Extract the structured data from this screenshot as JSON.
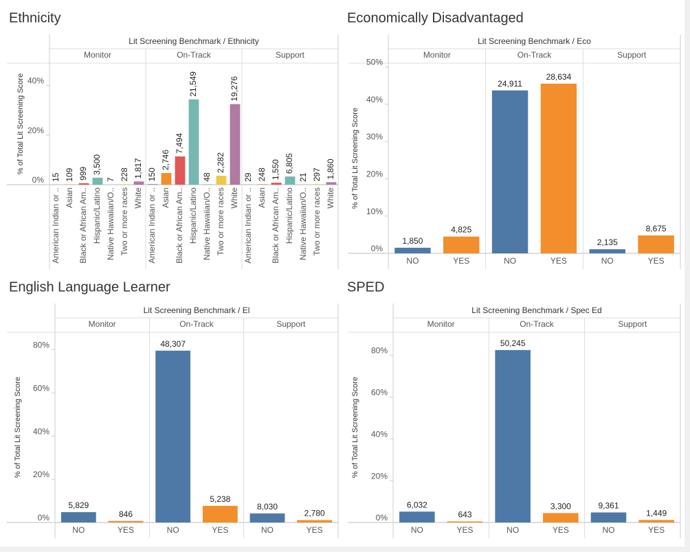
{
  "chart_data": [
    {
      "type": "bar",
      "title": "Ethnicity",
      "header": "Lit Screening Benchmark / Ethnicity",
      "y_label": "% of Total Lit Screening Score",
      "panels": [
        "Monitor",
        "On-Track",
        "Support"
      ],
      "categories": [
        "American Indian or ..",
        "Asian",
        "Black or African Am..",
        "Hispanic/Latino",
        "Native Hawaiian/O..",
        "Two or more races",
        "White"
      ],
      "colors": [
        "#4e79a7",
        "#f28e2b",
        "#e15759",
        "#76b7b2",
        "#59a14f",
        "#edc948",
        "#b07aa1"
      ],
      "values": [
        [
          0.02,
          0.1,
          0.6,
          2.8,
          0.01,
          0.2,
          1.3
        ],
        [
          0.2,
          4.7,
          11.4,
          34.4,
          0.1,
          3.6,
          32.5
        ],
        [
          0.03,
          0.2,
          0.8,
          3.3,
          0.02,
          0.2,
          1.0
        ]
      ],
      "count_labels": [
        [
          "15",
          "109",
          "999",
          "3,500",
          "7",
          "228",
          "1,817"
        ],
        [
          "150",
          "2,746",
          "7,494",
          "21,549",
          "48",
          "2,282",
          "19,276"
        ],
        [
          "29",
          "248",
          "1,550",
          "6,805",
          "21",
          "297",
          "1,860"
        ]
      ],
      "ylim": [
        0,
        49
      ],
      "yticks": [
        {
          "value": 0,
          "label": "0%"
        },
        {
          "value": 20,
          "label": "20%"
        },
        {
          "value": 40,
          "label": "40%"
        }
      ]
    },
    {
      "type": "bar",
      "title": "Economically Disadvantaged",
      "header": "Lit Screening Benchmark / Eco",
      "y_label": "% of Total Lit Screening Score",
      "panels": [
        "Monitor",
        "On-Track",
        "Support"
      ],
      "categories": [
        "NO",
        "YES"
      ],
      "colors": [
        "#4e79a7",
        "#f28e2b"
      ],
      "values": [
        [
          1.5,
          4.5
        ],
        [
          43.7,
          45.5
        ],
        [
          1.1,
          4.8
        ]
      ],
      "count_labels": [
        [
          "1,850",
          "4,825"
        ],
        [
          "24,911",
          "28,634"
        ],
        [
          "2,135",
          "8,675"
        ]
      ],
      "ylim": [
        0,
        51
      ],
      "yticks": [
        {
          "value": 0,
          "label": "0%"
        },
        {
          "value": 10,
          "label": "10%"
        },
        {
          "value": 20,
          "label": "20%"
        },
        {
          "value": 30,
          "label": "30%"
        },
        {
          "value": 40,
          "label": "40%"
        },
        {
          "value": 50,
          "label": "50%"
        }
      ]
    },
    {
      "type": "bar",
      "title": "English Language Learner",
      "header": "Lit Screening Benchmark / El",
      "y_label": "% of Total Lit Screening Score",
      "panels": [
        "Monitor",
        "On-Track",
        "Support"
      ],
      "categories": [
        "NO",
        "YES"
      ],
      "colors": [
        "#4e79a7",
        "#f28e2b"
      ],
      "values": [
        [
          4.8,
          0.7
        ],
        [
          79.5,
          7.7
        ],
        [
          4.2,
          1.1
        ]
      ],
      "count_labels": [
        [
          "5,829",
          "846"
        ],
        [
          "48,307",
          "5,238"
        ],
        [
          "8,030",
          "2,780"
        ]
      ],
      "ylim": [
        0,
        88
      ],
      "yticks": [
        {
          "value": 0,
          "label": "0%"
        },
        {
          "value": 20,
          "label": "20%"
        },
        {
          "value": 40,
          "label": "40%"
        },
        {
          "value": 60,
          "label": "60%"
        },
        {
          "value": 80,
          "label": "80%"
        }
      ]
    },
    {
      "type": "bar",
      "title": "SPED",
      "header": "Lit Screening Benchmark / Spec Ed",
      "y_label": "% of Total Lit Screening Score",
      "panels": [
        "Monitor",
        "On-Track",
        "Support"
      ],
      "categories": [
        "NO",
        "YES"
      ],
      "colors": [
        "#4e79a7",
        "#f28e2b"
      ],
      "values": [
        [
          5.2,
          0.5
        ],
        [
          82.5,
          4.5
        ],
        [
          4.8,
          1.2
        ]
      ],
      "count_labels": [
        [
          "6,032",
          "643"
        ],
        [
          "50,245",
          "3,300"
        ],
        [
          "9,361",
          "1,449"
        ]
      ],
      "ylim": [
        0,
        91
      ],
      "yticks": [
        {
          "value": 0,
          "label": "0%"
        },
        {
          "value": 20,
          "label": "20%"
        },
        {
          "value": 40,
          "label": "40%"
        },
        {
          "value": 60,
          "label": "60%"
        },
        {
          "value": 80,
          "label": "80%"
        }
      ]
    }
  ]
}
